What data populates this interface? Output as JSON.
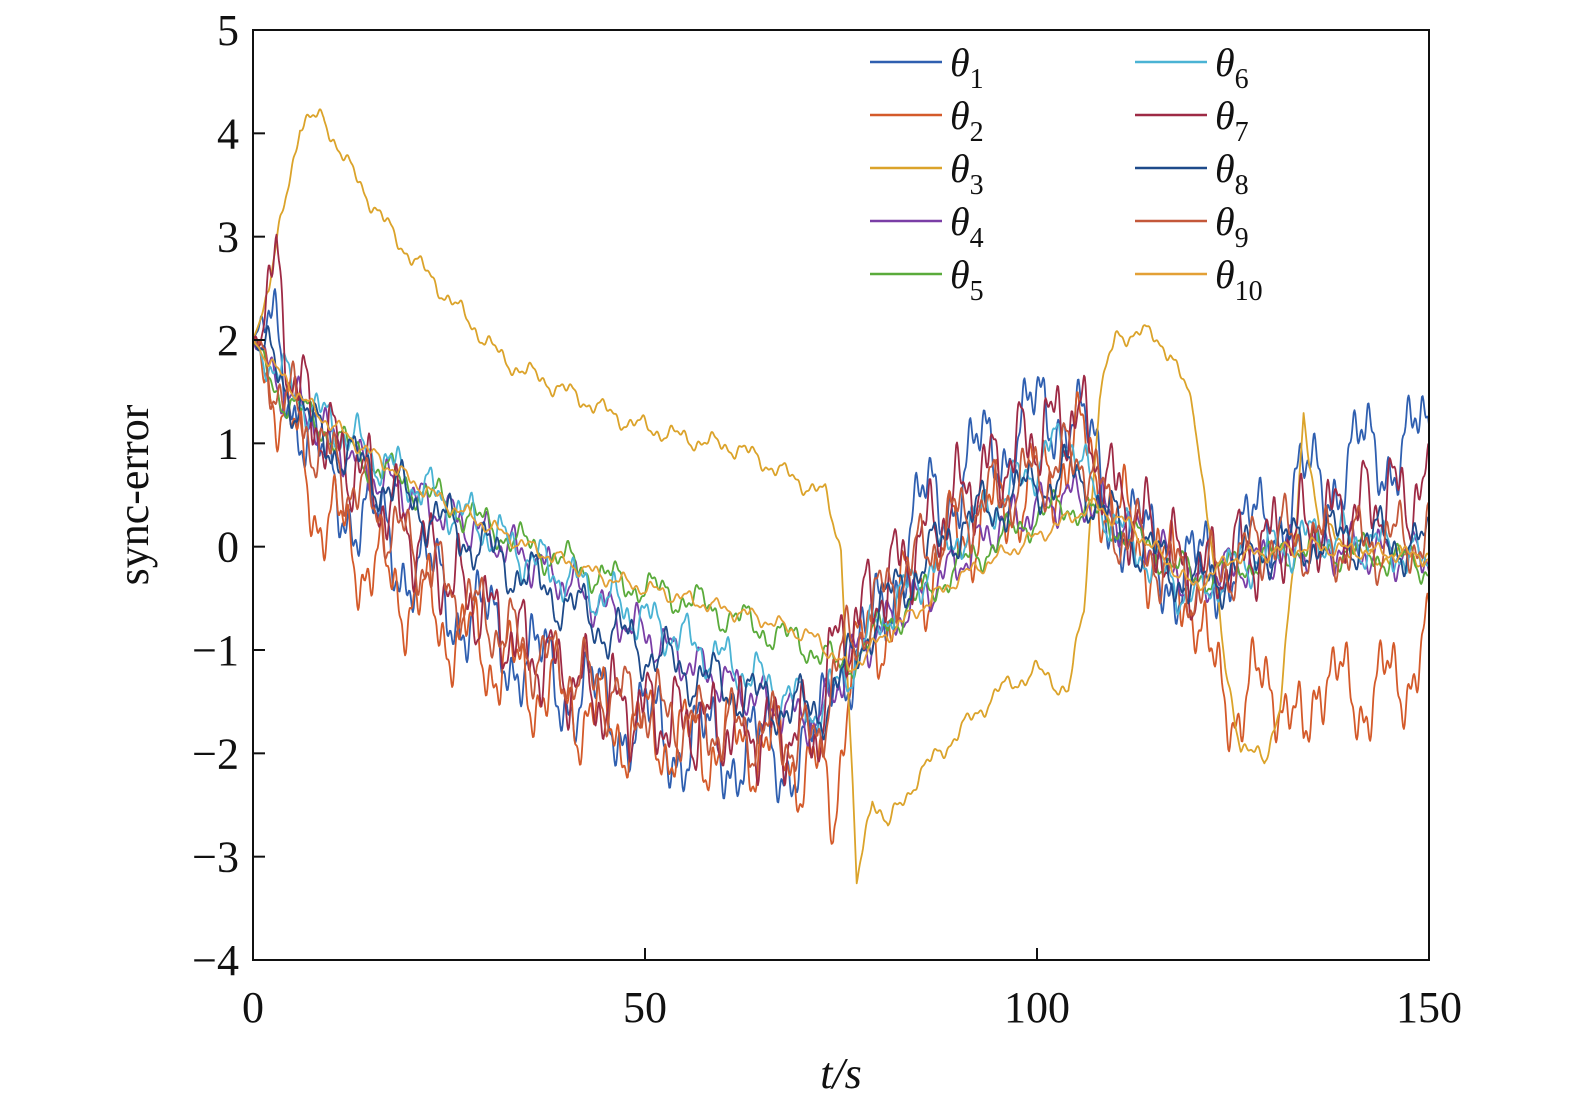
{
  "chart_data": {
    "type": "line",
    "title": "",
    "xlabel": "t/s",
    "ylabel": "sync-error",
    "xlim": [
      0,
      150
    ],
    "ylim": [
      -4,
      5
    ],
    "xticks": [
      "0",
      "50",
      "100",
      "150"
    ],
    "yticks": [
      "5",
      "4",
      "3",
      "2",
      "1",
      "0",
      "−1",
      "−2",
      "−3",
      "−4"
    ],
    "grid": false,
    "legend_position": "top-right",
    "series": [
      {
        "name": "θ1",
        "base": "θ",
        "sub": "1",
        "color": "#2f5fb0",
        "amp": 0.65,
        "points": [
          [
            0,
            2.0
          ],
          [
            3,
            2.0
          ],
          [
            8,
            0.8
          ],
          [
            15,
            0.2
          ],
          [
            25,
            -0.5
          ],
          [
            35,
            -1.1
          ],
          [
            45,
            -1.6
          ],
          [
            55,
            -1.9
          ],
          [
            65,
            -2.0
          ],
          [
            72,
            -2.0
          ],
          [
            74,
            -1.0
          ],
          [
            77,
            -1.2
          ],
          [
            85,
            0.3
          ],
          [
            95,
            1.0
          ],
          [
            104,
            1.4
          ],
          [
            110,
            0.3
          ],
          [
            118,
            -0.3
          ],
          [
            123,
            -0.2
          ],
          [
            133,
            0.5
          ],
          [
            142,
            0.9
          ],
          [
            150,
            1.0
          ]
        ]
      },
      {
        "name": "θ2",
        "base": "θ",
        "sub": "2",
        "color": "#d45a2a",
        "amp": 0.6,
        "points": [
          [
            0,
            2.0
          ],
          [
            3,
            1.5
          ],
          [
            8,
            0.4
          ],
          [
            15,
            -0.2
          ],
          [
            25,
            -0.8
          ],
          [
            35,
            -1.3
          ],
          [
            45,
            -1.7
          ],
          [
            55,
            -1.9
          ],
          [
            65,
            -1.9
          ],
          [
            72,
            -2.2
          ],
          [
            74,
            -2.6
          ],
          [
            76,
            -1.2
          ],
          [
            80,
            -0.8
          ],
          [
            90,
            0.1
          ],
          [
            100,
            0.6
          ],
          [
            106,
            1.0
          ],
          [
            110,
            0.3
          ],
          [
            120,
            -0.5
          ],
          [
            122,
            -1.2
          ],
          [
            126,
            -1.6
          ],
          [
            130,
            -1.2
          ],
          [
            134,
            -2.0
          ],
          [
            136,
            -1.1
          ],
          [
            140,
            -1.5
          ],
          [
            146,
            -1.3
          ],
          [
            150,
            -1.0
          ]
        ]
      },
      {
        "name": "θ3",
        "base": "θ",
        "sub": "3",
        "color": "#dba32a",
        "amp": 0.12,
        "points": [
          [
            0,
            2.0
          ],
          [
            2,
            2.5
          ],
          [
            4,
            3.3
          ],
          [
            6,
            4.1
          ],
          [
            9,
            4.15
          ],
          [
            12,
            3.7
          ],
          [
            18,
            3.0
          ],
          [
            25,
            2.4
          ],
          [
            32,
            1.8
          ],
          [
            40,
            1.5
          ],
          [
            48,
            1.2
          ],
          [
            55,
            1.05
          ],
          [
            62,
            0.95
          ],
          [
            68,
            0.7
          ],
          [
            73,
            0.5
          ],
          [
            75,
            0.0
          ],
          [
            76,
            -1.5
          ],
          [
            77,
            -3.3
          ],
          [
            79,
            -2.4
          ],
          [
            81,
            -2.7
          ],
          [
            85,
            -2.2
          ],
          [
            90,
            -1.8
          ],
          [
            95,
            -1.4
          ],
          [
            100,
            -1.2
          ],
          [
            104,
            -1.4
          ],
          [
            106,
            -0.6
          ],
          [
            107,
            0.5
          ],
          [
            108,
            1.5
          ],
          [
            110,
            2.0
          ],
          [
            113,
            2.1
          ],
          [
            117,
            1.9
          ],
          [
            120,
            1.3
          ],
          [
            122,
            0.2
          ],
          [
            124,
            -1.2
          ],
          [
            126,
            -1.9
          ],
          [
            129,
            -2.1
          ],
          [
            131,
            -1.5
          ],
          [
            133,
            0.0
          ],
          [
            134,
            1.3
          ],
          [
            136,
            0.2
          ],
          [
            142,
            -0.1
          ],
          [
            150,
            -0.1
          ]
        ]
      },
      {
        "name": "θ4",
        "base": "θ",
        "sub": "4",
        "color": "#7a3ea6",
        "amp": 0.28,
        "points": [
          [
            0,
            2.0
          ],
          [
            3,
            1.6
          ],
          [
            8,
            1.2
          ],
          [
            15,
            0.7
          ],
          [
            25,
            0.3
          ],
          [
            35,
            -0.1
          ],
          [
            45,
            -0.6
          ],
          [
            55,
            -1.1
          ],
          [
            65,
            -1.5
          ],
          [
            72,
            -1.7
          ],
          [
            74,
            -1.4
          ],
          [
            77,
            -1.0
          ],
          [
            85,
            -0.5
          ],
          [
            95,
            0.2
          ],
          [
            104,
            0.5
          ],
          [
            108,
            0.4
          ],
          [
            115,
            0.0
          ],
          [
            120,
            -0.4
          ],
          [
            125,
            -0.2
          ],
          [
            135,
            0.0
          ],
          [
            150,
            -0.1
          ]
        ]
      },
      {
        "name": "θ5",
        "base": "θ",
        "sub": "5",
        "color": "#5aab3b",
        "amp": 0.22,
        "points": [
          [
            0,
            2.0
          ],
          [
            3,
            1.5
          ],
          [
            8,
            1.2
          ],
          [
            15,
            0.8
          ],
          [
            25,
            0.4
          ],
          [
            35,
            0.0
          ],
          [
            45,
            -0.3
          ],
          [
            55,
            -0.5
          ],
          [
            65,
            -0.8
          ],
          [
            72,
            -1.0
          ],
          [
            75,
            -1.2
          ],
          [
            80,
            -0.8
          ],
          [
            90,
            -0.2
          ],
          [
            100,
            0.3
          ],
          [
            105,
            0.4
          ],
          [
            110,
            0.2
          ],
          [
            120,
            -0.3
          ],
          [
            125,
            -0.2
          ],
          [
            135,
            0.0
          ],
          [
            145,
            -0.1
          ],
          [
            150,
            -0.2
          ]
        ]
      },
      {
        "name": "θ6",
        "base": "θ",
        "sub": "6",
        "color": "#4ab3d4",
        "amp": 0.3,
        "points": [
          [
            0,
            2.0
          ],
          [
            3,
            1.7
          ],
          [
            8,
            1.3
          ],
          [
            15,
            0.9
          ],
          [
            25,
            0.4
          ],
          [
            35,
            -0.1
          ],
          [
            45,
            -0.5
          ],
          [
            55,
            -0.9
          ],
          [
            65,
            -1.3
          ],
          [
            72,
            -1.6
          ],
          [
            75,
            -1.3
          ],
          [
            80,
            -0.7
          ],
          [
            90,
            0.1
          ],
          [
            100,
            0.8
          ],
          [
            104,
            1.1
          ],
          [
            108,
            0.4
          ],
          [
            115,
            -0.2
          ],
          [
            120,
            -0.5
          ],
          [
            125,
            -0.2
          ],
          [
            135,
            0.1
          ],
          [
            145,
            0.0
          ],
          [
            150,
            -0.2
          ]
        ]
      },
      {
        "name": "θ7",
        "base": "θ",
        "sub": "7",
        "color": "#9e2a45",
        "amp": 0.55,
        "points": [
          [
            0,
            2.0
          ],
          [
            2,
            2.3
          ],
          [
            3,
            2.8
          ],
          [
            5,
            1.6
          ],
          [
            10,
            1.0
          ],
          [
            15,
            0.6
          ],
          [
            25,
            -0.3
          ],
          [
            35,
            -1.0
          ],
          [
            45,
            -1.5
          ],
          [
            55,
            -1.7
          ],
          [
            65,
            -1.8
          ],
          [
            72,
            -1.8
          ],
          [
            74,
            -1.0
          ],
          [
            80,
            -0.4
          ],
          [
            90,
            0.5
          ],
          [
            100,
            1.1
          ],
          [
            105,
            1.3
          ],
          [
            110,
            0.5
          ],
          [
            120,
            -0.3
          ],
          [
            125,
            -0.1
          ],
          [
            135,
            0.2
          ],
          [
            145,
            0.5
          ],
          [
            150,
            0.5
          ]
        ]
      },
      {
        "name": "θ8",
        "base": "θ",
        "sub": "8",
        "color": "#1e4a8a",
        "amp": 0.35,
        "points": [
          [
            0,
            2.0
          ],
          [
            3,
            1.7
          ],
          [
            8,
            1.1
          ],
          [
            15,
            0.7
          ],
          [
            25,
            0.2
          ],
          [
            35,
            -0.3
          ],
          [
            45,
            -0.8
          ],
          [
            55,
            -1.2
          ],
          [
            65,
            -1.5
          ],
          [
            72,
            -1.6
          ],
          [
            75,
            -1.3
          ],
          [
            80,
            -0.6
          ],
          [
            90,
            0.2
          ],
          [
            100,
            0.6
          ],
          [
            105,
            0.7
          ],
          [
            110,
            0.2
          ],
          [
            120,
            -0.4
          ],
          [
            130,
            0.0
          ],
          [
            140,
            0.1
          ],
          [
            150,
            0.0
          ]
        ]
      },
      {
        "name": "θ9",
        "base": "θ",
        "sub": "9",
        "color": "#c4583a",
        "amp": 0.45,
        "points": [
          [
            0,
            2.0
          ],
          [
            3,
            1.6
          ],
          [
            8,
            1.0
          ],
          [
            15,
            0.4
          ],
          [
            25,
            -0.4
          ],
          [
            35,
            -1.0
          ],
          [
            45,
            -1.4
          ],
          [
            55,
            -1.7
          ],
          [
            65,
            -1.8
          ],
          [
            72,
            -1.9
          ],
          [
            74,
            -1.2
          ],
          [
            80,
            -0.5
          ],
          [
            90,
            0.3
          ],
          [
            100,
            0.7
          ],
          [
            106,
            0.9
          ],
          [
            110,
            0.2
          ],
          [
            120,
            -0.4
          ],
          [
            130,
            0.1
          ],
          [
            140,
            0.0
          ],
          [
            150,
            0.1
          ]
        ]
      },
      {
        "name": "θ10",
        "base": "θ",
        "sub": "10",
        "color": "#e3a036",
        "amp": 0.1,
        "points": [
          [
            0,
            2.0
          ],
          [
            3,
            1.7
          ],
          [
            8,
            1.3
          ],
          [
            15,
            0.9
          ],
          [
            25,
            0.4
          ],
          [
            35,
            0.0
          ],
          [
            45,
            -0.3
          ],
          [
            55,
            -0.5
          ],
          [
            65,
            -0.7
          ],
          [
            72,
            -0.9
          ],
          [
            76,
            -1.2
          ],
          [
            80,
            -0.9
          ],
          [
            90,
            -0.3
          ],
          [
            100,
            0.1
          ],
          [
            107,
            0.4
          ],
          [
            112,
            0.2
          ],
          [
            120,
            -0.4
          ],
          [
            125,
            -0.1
          ],
          [
            135,
            0.0
          ],
          [
            150,
            -0.1
          ]
        ]
      }
    ]
  }
}
